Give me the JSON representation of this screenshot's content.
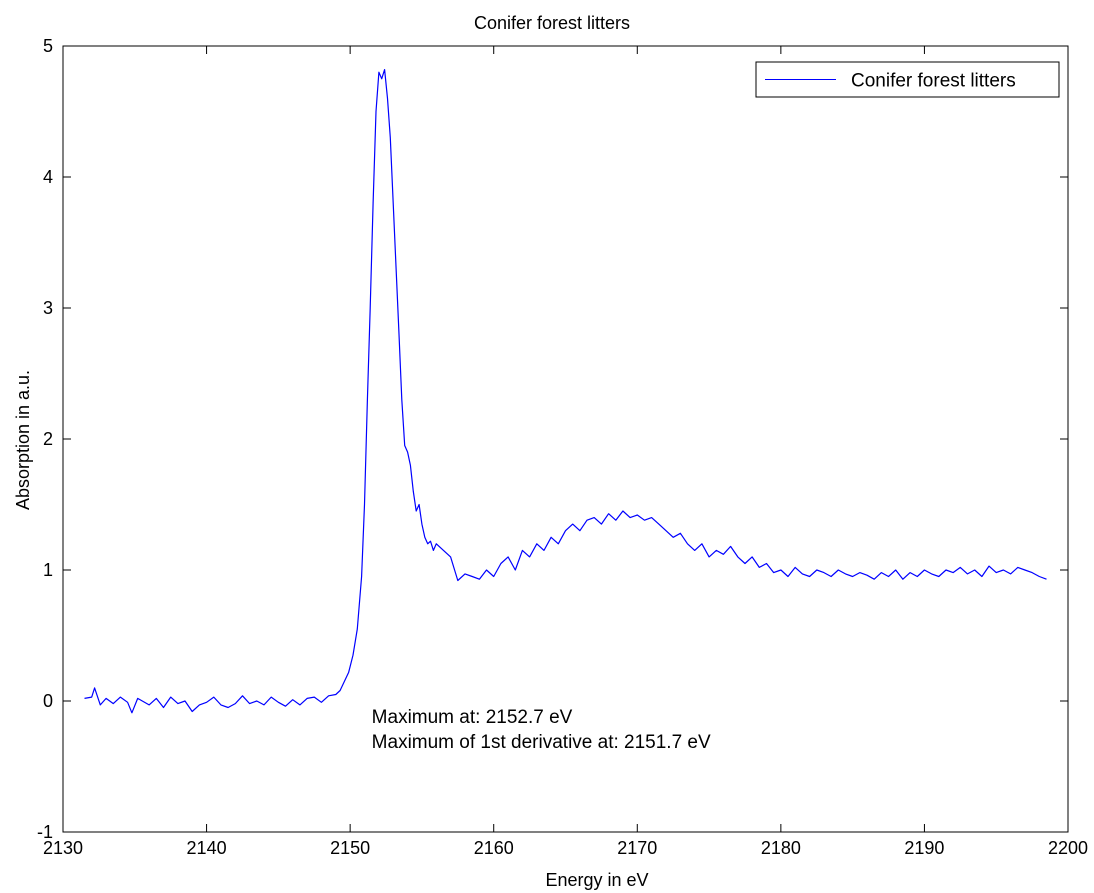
{
  "chart_data": {
    "type": "line",
    "title": "Conifer forest litters",
    "xlabel": "Energy in eV",
    "ylabel": "Absorption in a.u.",
    "xlim": [
      2130,
      2200
    ],
    "ylim": [
      -1,
      5
    ],
    "xticks": [
      2130,
      2140,
      2150,
      2160,
      2170,
      2180,
      2190,
      2200
    ],
    "yticks": [
      -1,
      0,
      1,
      2,
      3,
      4,
      5
    ],
    "grid": false,
    "legend_position": "top-right",
    "annotations": [
      "Maximum at: 2152.7 eV",
      "Maximum of 1st derivative at: 2151.7 eV"
    ],
    "series": [
      {
        "name": "Conifer forest litters",
        "color": "#0000ff",
        "x": [
          2131.5,
          2132.0,
          2132.2,
          2132.6,
          2133.0,
          2133.5,
          2134.0,
          2134.5,
          2134.8,
          2135.2,
          2136.0,
          2136.5,
          2137.0,
          2137.5,
          2138.0,
          2138.5,
          2139.0,
          2139.5,
          2140.0,
          2140.5,
          2141.0,
          2141.5,
          2142.0,
          2142.5,
          2143.0,
          2143.5,
          2144.0,
          2144.5,
          2145.0,
          2145.5,
          2146.0,
          2146.5,
          2147.0,
          2147.5,
          2148.0,
          2148.5,
          2149.0,
          2149.3,
          2149.6,
          2149.9,
          2150.2,
          2150.5,
          2150.8,
          2151.0,
          2151.2,
          2151.4,
          2151.6,
          2151.8,
          2152.0,
          2152.2,
          2152.4,
          2152.6,
          2152.8,
          2153.0,
          2153.2,
          2153.4,
          2153.6,
          2153.8,
          2154.0,
          2154.2,
          2154.4,
          2154.6,
          2154.8,
          2155.0,
          2155.2,
          2155.4,
          2155.6,
          2155.8,
          2156.0,
          2156.5,
          2157.0,
          2157.5,
          2158.0,
          2158.5,
          2159.0,
          2159.5,
          2160.0,
          2160.5,
          2161.0,
          2161.5,
          2162.0,
          2162.5,
          2163.0,
          2163.5,
          2164.0,
          2164.5,
          2165.0,
          2165.5,
          2166.0,
          2166.5,
          2167.0,
          2167.5,
          2168.0,
          2168.5,
          2169.0,
          2169.5,
          2170.0,
          2170.5,
          2171.0,
          2171.5,
          2172.0,
          2172.5,
          2173.0,
          2173.5,
          2174.0,
          2174.5,
          2175.0,
          2175.5,
          2176.0,
          2176.5,
          2177.0,
          2177.5,
          2178.0,
          2178.5,
          2179.0,
          2179.5,
          2180.0,
          2180.5,
          2181.0,
          2181.5,
          2182.0,
          2182.5,
          2183.0,
          2183.5,
          2184.0,
          2184.5,
          2185.0,
          2185.5,
          2186.0,
          2186.5,
          2187.0,
          2187.5,
          2188.0,
          2188.5,
          2189.0,
          2189.5,
          2190.0,
          2190.5,
          2191.0,
          2191.5,
          2192.0,
          2192.5,
          2193.0,
          2193.5,
          2194.0,
          2194.5,
          2195.0,
          2195.5,
          2196.0,
          2196.5,
          2197.0,
          2197.5,
          2198.0,
          2198.5
        ],
        "y": [
          0.02,
          0.03,
          0.1,
          -0.03,
          0.02,
          -0.02,
          0.03,
          -0.01,
          -0.09,
          0.02,
          -0.03,
          0.02,
          -0.05,
          0.03,
          -0.02,
          0.0,
          -0.08,
          -0.03,
          -0.01,
          0.03,
          -0.03,
          -0.05,
          -0.02,
          0.04,
          -0.02,
          0.0,
          -0.03,
          0.03,
          -0.01,
          -0.04,
          0.01,
          -0.03,
          0.02,
          0.03,
          -0.01,
          0.04,
          0.05,
          0.08,
          0.15,
          0.22,
          0.35,
          0.55,
          0.95,
          1.5,
          2.3,
          3.0,
          3.8,
          4.5,
          4.8,
          4.75,
          4.82,
          4.6,
          4.3,
          3.8,
          3.3,
          2.8,
          2.3,
          1.95,
          1.9,
          1.8,
          1.6,
          1.45,
          1.5,
          1.35,
          1.25,
          1.2,
          1.22,
          1.15,
          1.2,
          1.15,
          1.1,
          0.92,
          0.97,
          0.95,
          0.93,
          1.0,
          0.95,
          1.05,
          1.1,
          1.0,
          1.15,
          1.1,
          1.2,
          1.15,
          1.25,
          1.2,
          1.3,
          1.35,
          1.3,
          1.38,
          1.4,
          1.35,
          1.43,
          1.38,
          1.45,
          1.4,
          1.42,
          1.38,
          1.4,
          1.35,
          1.3,
          1.25,
          1.28,
          1.2,
          1.15,
          1.2,
          1.1,
          1.15,
          1.12,
          1.18,
          1.1,
          1.05,
          1.1,
          1.02,
          1.05,
          0.98,
          1.0,
          0.95,
          1.02,
          0.97,
          0.95,
          1.0,
          0.98,
          0.95,
          1.0,
          0.97,
          0.95,
          0.98,
          0.96,
          0.93,
          0.98,
          0.95,
          1.0,
          0.93,
          0.98,
          0.95,
          1.0,
          0.97,
          0.95,
          1.0,
          0.98,
          1.02,
          0.97,
          1.0,
          0.95,
          1.03,
          0.98,
          1.0,
          0.97,
          1.02,
          1.0,
          0.98,
          0.95,
          0.93
        ]
      }
    ]
  }
}
